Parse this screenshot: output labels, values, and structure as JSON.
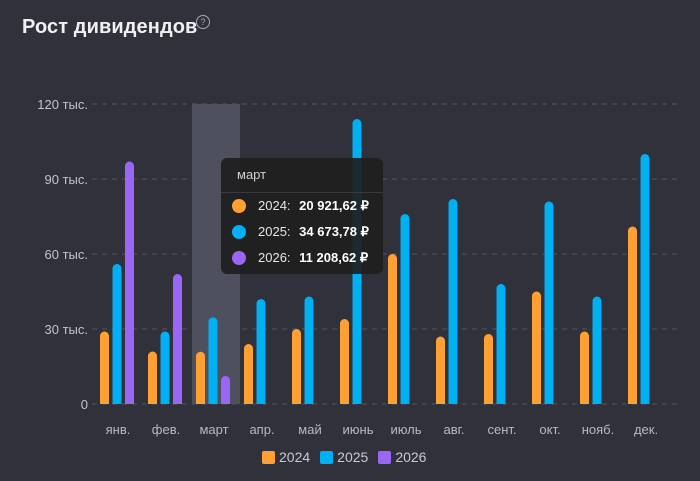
{
  "header": {
    "title": "Рост дивидендов",
    "help_icon": "?"
  },
  "tooltip": {
    "month": "март",
    "rows": [
      {
        "year": "2024:",
        "value": "20 921,62 ₽",
        "color": "#ffa033"
      },
      {
        "year": "2025:",
        "value": "34 673,78 ₽",
        "color": "#00b0f5"
      },
      {
        "year": "2026:",
        "value": "11 208,62 ₽",
        "color": "#9a66f5"
      }
    ]
  },
  "chart_data": {
    "type": "bar",
    "title": "Рост дивидендов",
    "xlabel": "",
    "ylabel": "",
    "ylim": [
      0,
      120000
    ],
    "yticks": [
      0,
      30000,
      60000,
      90000,
      120000
    ],
    "ytick_labels": [
      "0",
      "30 тыс.",
      "60 тыс.",
      "90 тыс.",
      "120 тыс."
    ],
    "grid": true,
    "legend_position": "bottom",
    "highlighted_category": "март",
    "categories": [
      "янв.",
      "фев.",
      "март",
      "апр.",
      "май",
      "июнь",
      "июль",
      "авг.",
      "сент.",
      "окт.",
      "нояб.",
      "дек."
    ],
    "series": [
      {
        "name": "2024",
        "color": "#ffa033",
        "values": [
          29000,
          21000,
          20921.62,
          24000,
          30000,
          34000,
          60000,
          27000,
          28000,
          45000,
          29000,
          71000
        ]
      },
      {
        "name": "2025",
        "color": "#00b0f5",
        "values": [
          56000,
          29000,
          34673.78,
          42000,
          43000,
          114000,
          76000,
          82000,
          48000,
          81000,
          43000,
          100000
        ]
      },
      {
        "name": "2026",
        "color": "#9a66f5",
        "values": [
          97000,
          52000,
          11208.62,
          null,
          null,
          null,
          null,
          null,
          null,
          null,
          null,
          null
        ]
      }
    ]
  }
}
